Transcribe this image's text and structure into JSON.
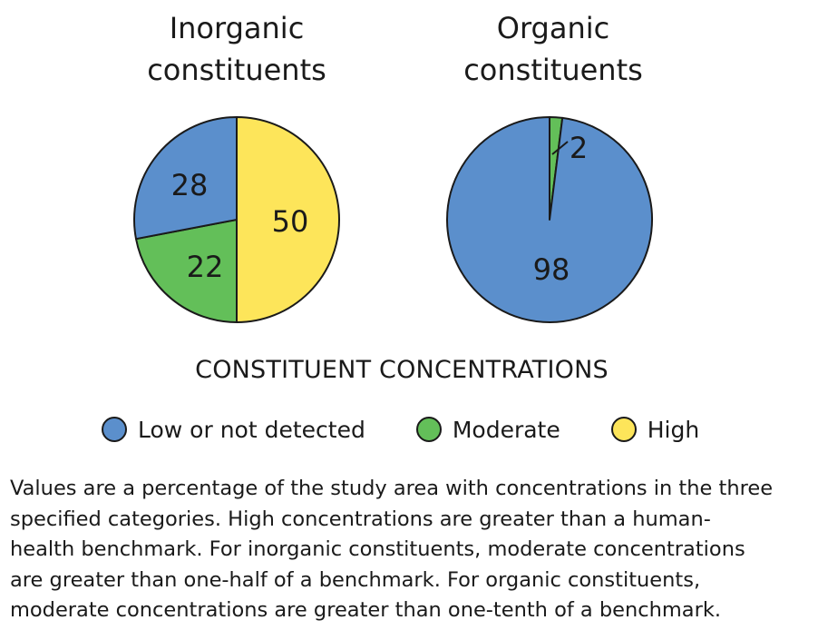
{
  "chart_data": {
    "type": "pie",
    "legend_title": "CONSTITUENT CONCENTRATIONS",
    "legend": [
      {
        "label": "Low or not detected",
        "color": "#5b8fcc"
      },
      {
        "label": "Moderate",
        "color": "#63bf59"
      },
      {
        "label": "High",
        "color": "#fde55a"
      }
    ],
    "charts": [
      {
        "title_lines": [
          "Inorganic",
          "constituents"
        ],
        "slices": [
          {
            "category": "High",
            "value": 50,
            "label": "50"
          },
          {
            "category": "Moderate",
            "value": 22,
            "label": "22"
          },
          {
            "category": "Low or not detected",
            "value": 28,
            "label": "28"
          }
        ]
      },
      {
        "title_lines": [
          "Organic",
          "constituents"
        ],
        "slices": [
          {
            "category": "Moderate",
            "value": 2,
            "label": "2"
          },
          {
            "category": "Low or not detected",
            "value": 98,
            "label": "98"
          }
        ]
      }
    ]
  },
  "note_lines": [
    "Values are a percentage of the study area with concentrations in the three",
    "specified categories. High concentrations are greater than a human-",
    "health benchmark. For inorganic constituents, moderate concentrations",
    "are greater than one-half of a benchmark.  For organic constituents,",
    "moderate concentrations are greater than one-tenth of a benchmark."
  ]
}
